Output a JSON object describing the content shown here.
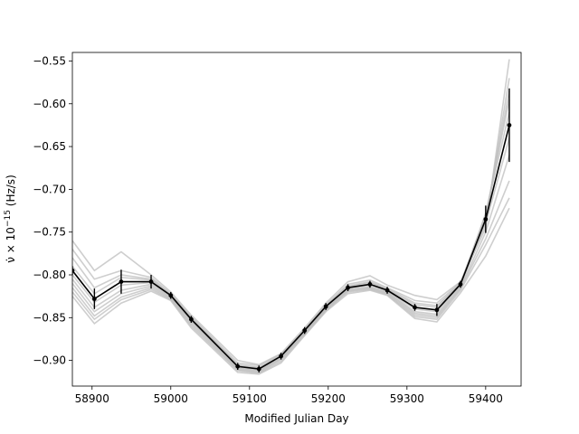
{
  "chart_data": {
    "type": "line",
    "title": "",
    "xlabel": "Modified Julian Day",
    "ylabel": "ν̇ × 10⁻¹⁵ (Hz/s)",
    "ylabel_parts": {
      "symbol": "ν̇",
      "times": "×",
      "base": "10",
      "exp": "−15",
      "unit": "(Hz/s)"
    },
    "xlim": [
      58875,
      59445
    ],
    "ylim": [
      -0.93,
      -0.54
    ],
    "xticks": [
      58900,
      59000,
      59100,
      59200,
      59300,
      59400
    ],
    "yticks": [
      -0.9,
      -0.85,
      -0.8,
      -0.75,
      -0.7,
      -0.65,
      -0.6,
      -0.55
    ],
    "xtick_labels": [
      "58900",
      "59000",
      "59100",
      "59200",
      "59300",
      "59400"
    ],
    "ytick_labels": [
      "−0.90",
      "−0.85",
      "−0.80",
      "−0.75",
      "−0.70",
      "−0.65",
      "−0.60",
      "−0.55"
    ],
    "grid": false,
    "colors": {
      "main": "#000000",
      "realizations": "#bdbdbd"
    },
    "x": [
      58875,
      58903,
      58937,
      58975,
      59000,
      59026,
      59085,
      59112,
      59140,
      59170,
      59197,
      59225,
      59253,
      59275,
      59310,
      59338,
      59368,
      59400,
      59430
    ],
    "series": [
      {
        "values": [
          -0.795,
          -0.828,
          -0.808,
          -0.808,
          -0.824,
          -0.852,
          -0.907,
          -0.91,
          -0.895,
          -0.865,
          -0.837,
          -0.815,
          -0.811,
          -0.818,
          -0.838,
          -0.841,
          -0.811,
          -0.735,
          -0.625
        ],
        "errors": [
          0.005,
          0.012,
          0.014,
          0.008,
          0.004,
          0.004,
          0.004,
          0.004,
          0.004,
          0.004,
          0.004,
          0.004,
          0.004,
          0.004,
          0.004,
          0.007,
          0.004,
          0.016,
          0.043
        ]
      }
    ],
    "realizations": [
      [
        -0.76,
        -0.795,
        -0.773,
        -0.8,
        -0.82,
        -0.847,
        -0.9,
        -0.905,
        -0.892,
        -0.862,
        -0.833,
        -0.808,
        -0.801,
        -0.812,
        -0.824,
        -0.829,
        -0.808,
        -0.745,
        -0.548
      ],
      [
        -0.77,
        -0.805,
        -0.795,
        -0.803,
        -0.822,
        -0.849,
        -0.903,
        -0.906,
        -0.893,
        -0.864,
        -0.835,
        -0.811,
        -0.806,
        -0.815,
        -0.83,
        -0.833,
        -0.809,
        -0.738,
        -0.57
      ],
      [
        -0.78,
        -0.815,
        -0.8,
        -0.805,
        -0.823,
        -0.85,
        -0.905,
        -0.908,
        -0.894,
        -0.864,
        -0.836,
        -0.813,
        -0.808,
        -0.816,
        -0.833,
        -0.836,
        -0.81,
        -0.733,
        -0.585
      ],
      [
        -0.79,
        -0.822,
        -0.803,
        -0.806,
        -0.824,
        -0.851,
        -0.906,
        -0.909,
        -0.895,
        -0.865,
        -0.836,
        -0.814,
        -0.809,
        -0.817,
        -0.835,
        -0.838,
        -0.81,
        -0.73,
        -0.595
      ],
      [
        -0.8,
        -0.832,
        -0.812,
        -0.809,
        -0.825,
        -0.853,
        -0.908,
        -0.911,
        -0.896,
        -0.866,
        -0.838,
        -0.816,
        -0.812,
        -0.819,
        -0.84,
        -0.843,
        -0.812,
        -0.728,
        -0.61
      ],
      [
        -0.805,
        -0.838,
        -0.818,
        -0.811,
        -0.826,
        -0.854,
        -0.909,
        -0.912,
        -0.897,
        -0.867,
        -0.839,
        -0.817,
        -0.814,
        -0.82,
        -0.843,
        -0.846,
        -0.813,
        -0.74,
        -0.64
      ],
      [
        -0.81,
        -0.843,
        -0.822,
        -0.813,
        -0.827,
        -0.856,
        -0.91,
        -0.913,
        -0.898,
        -0.868,
        -0.84,
        -0.818,
        -0.815,
        -0.821,
        -0.845,
        -0.848,
        -0.815,
        -0.75,
        -0.66
      ],
      [
        -0.815,
        -0.848,
        -0.826,
        -0.815,
        -0.828,
        -0.858,
        -0.911,
        -0.914,
        -0.899,
        -0.869,
        -0.841,
        -0.819,
        -0.816,
        -0.822,
        -0.847,
        -0.85,
        -0.816,
        -0.758,
        -0.69
      ],
      [
        -0.82,
        -0.852,
        -0.829,
        -0.817,
        -0.829,
        -0.86,
        -0.912,
        -0.915,
        -0.901,
        -0.87,
        -0.842,
        -0.82,
        -0.817,
        -0.823,
        -0.849,
        -0.852,
        -0.818,
        -0.765,
        -0.71
      ],
      [
        -0.825,
        -0.857,
        -0.833,
        -0.819,
        -0.83,
        -0.862,
        -0.914,
        -0.916,
        -0.903,
        -0.871,
        -0.843,
        -0.822,
        -0.818,
        -0.824,
        -0.851,
        -0.855,
        -0.821,
        -0.778,
        -0.722
      ]
    ]
  }
}
